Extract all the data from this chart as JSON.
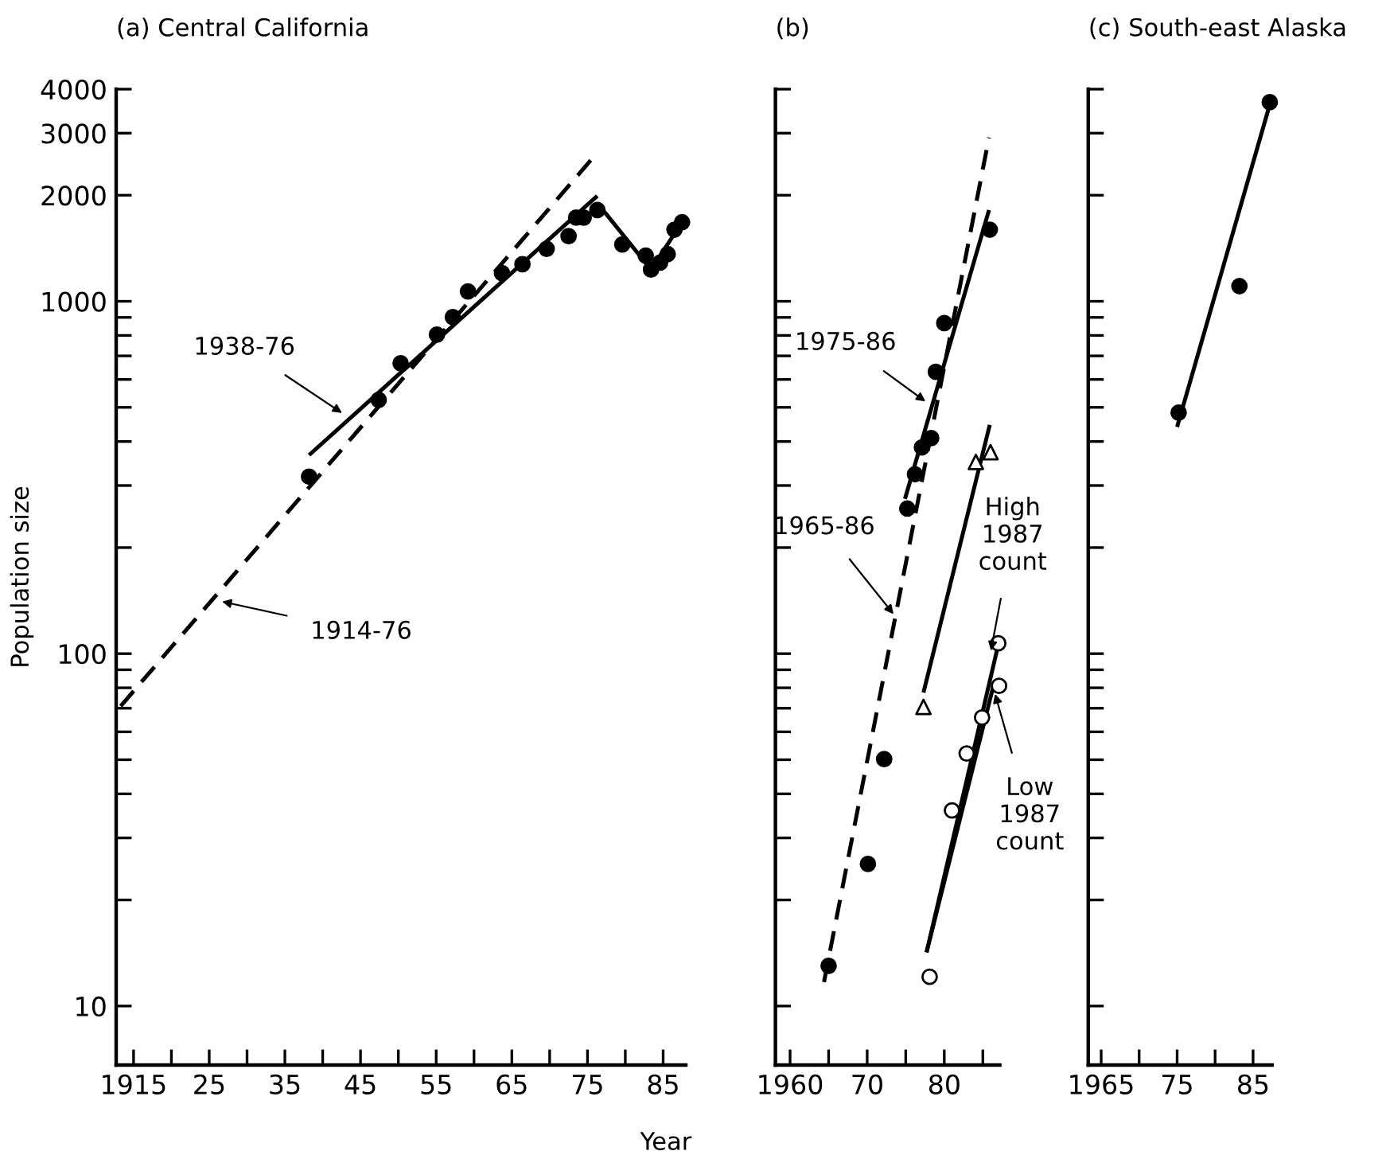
{
  "chart_data": [
    {
      "type": "scatter",
      "title": "(a) Central California",
      "xlabel": "Year",
      "ylabel": "Population size",
      "log": true,
      "xlim": [
        1912.7,
        1988
      ],
      "ylim": [
        6.8,
        4000
      ],
      "xticks": [
        {
          "value": 1915,
          "label": "1915"
        },
        {
          "value": 1920,
          "label": null
        },
        {
          "value": 1925,
          "label": "25"
        },
        {
          "value": 1930,
          "label": null
        },
        {
          "value": 1935,
          "label": "35"
        },
        {
          "value": 1940,
          "label": null
        },
        {
          "value": 1945,
          "label": "45"
        },
        {
          "value": 1950,
          "label": null
        },
        {
          "value": 1955,
          "label": "55"
        },
        {
          "value": 1960,
          "label": null
        },
        {
          "value": 1965,
          "label": "65"
        },
        {
          "value": 1970,
          "label": null
        },
        {
          "value": 1975,
          "label": "75"
        },
        {
          "value": 1980,
          "label": null
        },
        {
          "value": 1985,
          "label": "85"
        }
      ],
      "yticks": [
        10,
        {
          "value": 20,
          "label": null
        },
        {
          "value": 30,
          "label": null
        },
        {
          "value": 40,
          "label": null
        },
        {
          "value": 50,
          "label": null
        },
        {
          "value": 60,
          "label": null
        },
        {
          "value": 70,
          "label": null
        },
        {
          "value": 80,
          "label": null
        },
        {
          "value": 90,
          "label": null
        },
        100,
        {
          "value": 200,
          "label": null
        },
        {
          "value": 300,
          "label": null
        },
        {
          "value": 400,
          "label": null
        },
        {
          "value": 500,
          "label": null
        },
        {
          "value": 600,
          "label": null
        },
        {
          "value": 700,
          "label": null
        },
        {
          "value": 800,
          "label": null
        },
        {
          "value": 900,
          "label": null
        },
        1000,
        2000,
        3000,
        4000
      ],
      "series": [
        {
          "marker": "circle",
          "color": "#000000",
          "x": [
            1938.2,
            1947.4,
            1950.3,
            1955.1,
            1957.2,
            1959.2,
            1963.7,
            1966.4,
            1969.6,
            1972.5,
            1973.5,
            1974.5,
            1976.3,
            1979.6,
            1982.7,
            1983.4,
            1984.6,
            1985.6,
            1986.5,
            1987.5
          ],
          "values": [
            318,
            525,
            667,
            804,
            902,
            1067,
            1202,
            1274,
            1409,
            1531,
            1728,
            1728,
            1815,
            1449,
            1348,
            1230,
            1288,
            1361,
            1597,
            1676
          ]
        },
        {
          "type": "line",
          "line_style": "dashed",
          "color": "#000000",
          "x": [
            1913.3,
            1976.1
          ],
          "values": [
            71,
            2612
          ]
        },
        {
          "type": "line",
          "line_style": "solid",
          "color": "#000000",
          "x": [
            1938.2,
            1976.3
          ],
          "values": [
            366,
            1992
          ]
        },
        {
          "type": "line",
          "line_style": "solid",
          "color": "#000000",
          "x": [
            1976.3,
            1983.4,
            1987.5
          ],
          "values": [
            1900,
            1230,
            1676
          ]
        }
      ],
      "annotations": [
        {
          "text": "1938-76",
          "x": 1942.8,
          "y": 478
        },
        {
          "text": "1914-76",
          "x": 1926.4,
          "y": 141
        }
      ]
    },
    {
      "type": "scatter",
      "title": "(b)",
      "log": true,
      "tick_labels": "x",
      "xlim": [
        1958.1,
        1987.2
      ],
      "ylim": [
        6.8,
        4000
      ],
      "xticks": [
        {
          "value": 1960,
          "label": "1960"
        },
        {
          "value": 1965,
          "label": null
        },
        {
          "value": 1970,
          "label": "70"
        },
        {
          "value": 1975,
          "label": null
        },
        {
          "value": 1980,
          "label": "80"
        },
        {
          "value": 1985,
          "label": null
        }
      ],
      "yticks": [
        {
          "value": 10,
          "label": null
        },
        {
          "value": 20,
          "label": null
        },
        {
          "value": 30,
          "label": null
        },
        {
          "value": 40,
          "label": null
        },
        {
          "value": 50,
          "label": null
        },
        {
          "value": 60,
          "label": null
        },
        {
          "value": 70,
          "label": null
        },
        {
          "value": 80,
          "label": null
        },
        {
          "value": 90,
          "label": null
        },
        {
          "value": 100,
          "label": null
        },
        {
          "value": 200,
          "label": null
        },
        {
          "value": 300,
          "label": null
        },
        {
          "value": 400,
          "label": null
        },
        {
          "value": 500,
          "label": null
        },
        {
          "value": 600,
          "label": null
        },
        {
          "value": 700,
          "label": null
        },
        {
          "value": 800,
          "label": null
        },
        {
          "value": 900,
          "label": null
        },
        {
          "value": 1000,
          "label": null
        },
        {
          "value": 2000,
          "label": null
        },
        {
          "value": 3000,
          "label": null
        },
        {
          "value": 4000,
          "label": null
        }
      ],
      "series": [
        {
          "marker": "circle",
          "color": "#000000",
          "x": [
            1965.0,
            1970.1,
            1972.2,
            1975.2,
            1976.2,
            1977.1,
            1978.3,
            1978.9,
            1980.0,
            1985.9
          ],
          "values": [
            13.0,
            25.3,
            50.2,
            258,
            323,
            385,
            409,
            631,
            867,
            1597
          ]
        },
        {
          "marker": "triangle",
          "color": "#000000",
          "colors": [
            "#ffffff",
            "#ffffff",
            "#ffffff"
          ],
          "x": [
            1977.3,
            1984.1,
            1986.0
          ],
          "values": [
            70.6,
            350,
            373
          ]
        },
        {
          "marker": "circle",
          "color": "#000000",
          "colors": [
            "#ffffff",
            "#ffffff",
            "#ffffff",
            "#ffffff",
            "#ffffff",
            "#ffffff"
          ],
          "x": [
            1978.1,
            1981.0,
            1982.9,
            1984.9,
            1987.0,
            1987.1
          ],
          "values": [
            12.1,
            35.9,
            52.1,
            65.9,
            107,
            81
          ]
        },
        {
          "type": "line",
          "line_style": "dashed",
          "color": "#000000",
          "x": [
            1964.4,
            1985.8
          ],
          "values": [
            11.7,
            2917
          ]
        },
        {
          "type": "line",
          "line_style": "solid",
          "color": "#000000",
          "x": [
            1974.9,
            1985.8
          ],
          "values": [
            275,
            1815
          ]
        },
        {
          "type": "line",
          "line_style": "solid",
          "color": "#000000",
          "x": [
            1977.3,
            1985.9
          ],
          "values": [
            77.5,
            446
          ]
        },
        {
          "type": "line",
          "line_style": "solid",
          "color": "#000000",
          "x": [
            1977.7,
            1987.0
          ],
          "values": [
            14.2,
            106
          ]
        },
        {
          "type": "line",
          "line_style": "solid",
          "color": "#000000",
          "x": [
            1977.7,
            1986.5
          ],
          "values": [
            14.2,
            83.2
          ]
        }
      ],
      "annotations": [
        {
          "text": "1975-86",
          "x": 1977.8,
          "y": 515
        },
        {
          "text": "1965-86",
          "x": 1973.6,
          "y": 128
        },
        {
          "text": "High\n1987\ncount",
          "x": 1986.0,
          "y": 100.5
        },
        {
          "text": "Low\n1987\ncount",
          "x": 1986.5,
          "y": 78
        }
      ]
    },
    {
      "type": "scatter",
      "title": "(c) South-east Alaska",
      "log": true,
      "tick_labels": "x",
      "xlim": [
        1963.3,
        1987.5
      ],
      "ylim": [
        6.8,
        4000
      ],
      "xticks": [
        {
          "value": 1965,
          "label": "1965"
        },
        {
          "value": 1970,
          "label": null
        },
        {
          "value": 1975,
          "label": "75"
        },
        {
          "value": 1980,
          "label": null
        },
        {
          "value": 1985,
          "label": "85"
        }
      ],
      "yticks": [
        {
          "value": 10,
          "label": null
        },
        {
          "value": 20,
          "label": null
        },
        {
          "value": 30,
          "label": null
        },
        {
          "value": 40,
          "label": null
        },
        {
          "value": 50,
          "label": null
        },
        {
          "value": 60,
          "label": null
        },
        {
          "value": 70,
          "label": null
        },
        {
          "value": 80,
          "label": null
        },
        {
          "value": 90,
          "label": null
        },
        {
          "value": 100,
          "label": null
        },
        {
          "value": 200,
          "label": null
        },
        {
          "value": 300,
          "label": null
        },
        {
          "value": 400,
          "label": null
        },
        {
          "value": 500,
          "label": null
        },
        {
          "value": 600,
          "label": null
        },
        {
          "value": 700,
          "label": null
        },
        {
          "value": 800,
          "label": null
        },
        {
          "value": 900,
          "label": null
        },
        {
          "value": 1000,
          "label": null
        },
        {
          "value": 2000,
          "label": null
        },
        {
          "value": 3000,
          "label": null
        },
        {
          "value": 4000,
          "label": null
        }
      ],
      "series": [
        {
          "marker": "circle",
          "color": "#000000",
          "x": [
            1975.2,
            1983.2,
            1987.2
          ],
          "values": [
            483,
            1104,
            3673
          ]
        },
        {
          "type": "line",
          "line_style": "solid",
          "color": "#000000",
          "x": [
            1975.0,
            1987.2
          ],
          "values": [
            440,
            3620
          ]
        }
      ]
    }
  ]
}
